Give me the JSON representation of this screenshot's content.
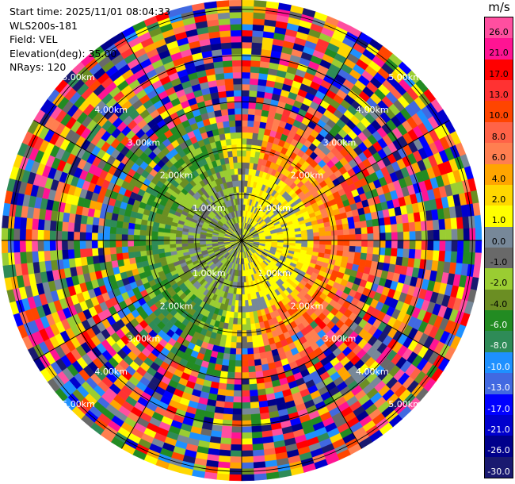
{
  "info": {
    "start_time": "Start time: 2025/11/01 08:04:33",
    "instrument": "WLS200s-181",
    "field": "Field: VEL",
    "elevation": "Elevation(deg): 35.00",
    "nrays": "NRays: 120"
  },
  "colorbar": {
    "unit": "m/s",
    "levels": [
      {
        "label": "26.0",
        "color": "#ff4fa0"
      },
      {
        "label": "21.0",
        "color": "#ff1493"
      },
      {
        "label": "17.0",
        "color": "#ff0000"
      },
      {
        "label": "13.0",
        "color": "#ff3232"
      },
      {
        "label": "10.0",
        "color": "#ff4500"
      },
      {
        "label": "8.0",
        "color": "#ff6347"
      },
      {
        "label": "6.0",
        "color": "#ff7f50"
      },
      {
        "label": "4.0",
        "color": "#ffa500"
      },
      {
        "label": "2.0",
        "color": "#ffd700"
      },
      {
        "label": "1.0",
        "color": "#ffff00"
      },
      {
        "label": "0.0",
        "color": "#778899"
      },
      {
        "label": "-1.0",
        "color": "#696969"
      },
      {
        "label": "-2.0",
        "color": "#9acd32"
      },
      {
        "label": "-4.0",
        "color": "#6b8e23"
      },
      {
        "label": "-6.0",
        "color": "#228b22"
      },
      {
        "label": "-8.0",
        "color": "#2e8b57"
      },
      {
        "label": "-10.0",
        "color": "#1e90ff"
      },
      {
        "label": "-13.0",
        "color": "#4169e1"
      },
      {
        "label": "-17.0",
        "color": "#0000ff"
      },
      {
        "label": "-21.0",
        "color": "#0000cd"
      },
      {
        "label": "-26.0",
        "color": "#00008b"
      },
      {
        "label": "-30.0",
        "color": "#191970"
      }
    ]
  },
  "chart_data": {
    "type": "heatmap",
    "projection": "polar PPI",
    "field": "VEL",
    "units": "m/s",
    "nrays": 120,
    "range_rings_km": [
      1.0,
      2.0,
      3.0,
      4.0,
      5.0
    ],
    "ring_labels": [
      "1.00km",
      "2.00km",
      "3.00km",
      "4.00km",
      "5.00km"
    ],
    "spokes_deg": [
      0,
      30,
      60,
      90,
      120,
      150,
      180,
      210,
      240,
      270,
      300,
      330
    ],
    "max_range_km": 5.2,
    "velocity_pattern": {
      "inner_positive_sector": "east, near-zero to +1 m/s (yellow)",
      "inner_negative_sector": "west, -1 to -4 m/s (green)",
      "mid_range_east": "+4 to +10 m/s (orange)",
      "far_range": "noise across full scale"
    },
    "colorbar_range": [
      -30.0,
      26.0
    ]
  }
}
